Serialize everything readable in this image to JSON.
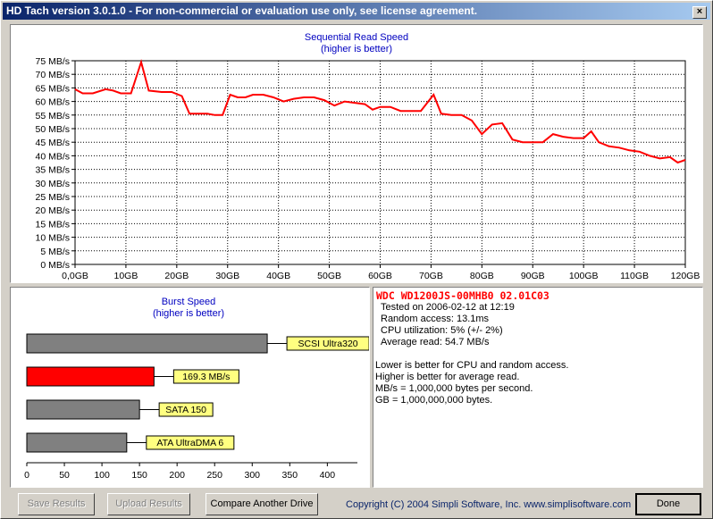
{
  "window": {
    "title": "HD Tach version 3.0.1.0  - For non-commercial or evaluation use only, see license agreement."
  },
  "read_chart": {
    "title": "Sequential Read Speed",
    "subtitle": "(higher is better)"
  },
  "burst_chart": {
    "title": "Burst Speed",
    "subtitle": "(higher is better)"
  },
  "chart_data": [
    {
      "type": "line",
      "title": "Sequential Read Speed",
      "subtitle": "(higher is better)",
      "xlabel": "",
      "ylabel": "",
      "x_ticks": [
        "0,0GB",
        "10GB",
        "20GB",
        "30GB",
        "40GB",
        "50GB",
        "60GB",
        "70GB",
        "80GB",
        "90GB",
        "100GB",
        "110GB",
        "120GB"
      ],
      "y_ticks": [
        "0 MB/s",
        "5 MB/s",
        "10 MB/s",
        "15 MB/s",
        "20 MB/s",
        "25 MB/s",
        "30 MB/s",
        "35 MB/s",
        "40 MB/s",
        "45 MB/s",
        "50 MB/s",
        "55 MB/s",
        "60 MB/s",
        "65 MB/s",
        "70 MB/s",
        "75 MB/s"
      ],
      "xlim": [
        0,
        120
      ],
      "ylim": [
        0,
        75
      ],
      "grid": true,
      "series": [
        {
          "color": "#ff0000",
          "x": [
            0,
            1.5,
            3.5,
            6,
            7.5,
            9,
            11,
            13,
            14.5,
            17,
            19,
            21,
            22.5,
            24,
            26,
            27.5,
            29,
            30.5,
            32,
            33.5,
            35,
            37,
            39,
            41,
            43,
            45,
            47,
            49,
            51,
            53,
            55,
            57,
            58.5,
            60,
            62,
            64,
            66,
            68,
            70.5,
            72,
            74,
            76,
            78,
            80,
            82,
            84,
            86,
            88,
            90,
            92,
            94,
            96,
            98,
            100,
            101.5,
            103,
            105,
            107,
            109,
            111,
            113,
            115,
            117,
            118.5,
            120
          ],
          "y": [
            64.5,
            63,
            63,
            64.5,
            64,
            63,
            63,
            74.5,
            64,
            63.5,
            63.5,
            62,
            55.5,
            55.5,
            55.5,
            55,
            55,
            62.5,
            61.5,
            61.5,
            62.5,
            62.5,
            61.5,
            60,
            61,
            61.5,
            61.5,
            60.5,
            58.5,
            60,
            59.5,
            59,
            57,
            58,
            58,
            56.5,
            56.5,
            56.5,
            62.5,
            55.5,
            55,
            55,
            53,
            48,
            51.5,
            52,
            46,
            45,
            45,
            45,
            48,
            47,
            46.5,
            46.5,
            49,
            45,
            43.5,
            43,
            42,
            41.5,
            40,
            39,
            39.5,
            37.5,
            38.5
          ]
        }
      ]
    },
    {
      "type": "bar",
      "orientation": "horizontal",
      "title": "Burst Speed",
      "subtitle": "(higher is better)",
      "categories": [
        "SCSI Ultra320",
        "169.3 MB/s",
        "SATA 150",
        "ATA UltraDMA 6"
      ],
      "values": [
        320,
        169.3,
        150,
        133
      ],
      "colors": [
        "#808080",
        "#ff0000",
        "#808080",
        "#808080"
      ],
      "x_ticks": [
        "0",
        "50",
        "100",
        "150",
        "200",
        "250",
        "300",
        "350",
        "400"
      ],
      "xlim": [
        0,
        440
      ],
      "grid": false
    }
  ],
  "info": {
    "drive": "WDC WD1200JS-00MHB0 02.01C03",
    "tested_on": "Tested on 2006-02-12 at 12:19",
    "random_access": "Random access: 13.1ms",
    "cpu": "CPU utilization: 5% (+/- 2%)",
    "average_read": "Average read: 54.7 MB/s",
    "note1": "Lower is better for CPU and random access.",
    "note2": "Higher is better for average read.",
    "note3": "MB/s = 1,000,000 bytes per second.",
    "note4": "GB = 1,000,000,000 bytes."
  },
  "buttons": {
    "save": "Save Results",
    "upload": "Upload Results",
    "compare": "Compare Another Drive",
    "done": "Done"
  },
  "footer": {
    "copyright": "Copyright (C) 2004 Simpli Software, Inc. www.simplisoftware.com"
  },
  "colors": {
    "accent": "#ff0000",
    "title_text": "#0000c0",
    "label_bg": "#ffff80"
  }
}
